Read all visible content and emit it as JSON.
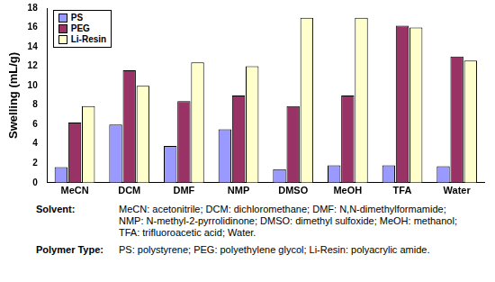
{
  "chart_data": {
    "type": "bar",
    "y_label": "Swelling (mL/g)",
    "categories": [
      "MeCN",
      "DCM",
      "DMF",
      "NMP",
      "DMSO",
      "MeOH",
      "TFA",
      "Water"
    ],
    "series": [
      {
        "name": "PS",
        "color": "#9999ff",
        "values": [
          1.6,
          6.0,
          3.8,
          5.5,
          1.4,
          1.8,
          1.8,
          1.7
        ]
      },
      {
        "name": "PEG",
        "color": "#993366",
        "values": [
          6.2,
          11.6,
          8.4,
          9.0,
          7.9,
          9.0,
          16.2,
          13.0
        ]
      },
      {
        "name": "Li-Resin",
        "color": "#ffffcc",
        "values": [
          7.9,
          10.0,
          12.4,
          12.0,
          17.0,
          17.0,
          16.0,
          12.6
        ]
      }
    ],
    "ylim": [
      0,
      18
    ],
    "yticks": [
      0,
      2,
      4,
      6,
      8,
      10,
      12,
      14,
      16,
      18
    ],
    "grid": false,
    "legend": "top-left",
    "data_labels": false,
    "annotations": [
      {
        "label": "Solvent:",
        "lines": [
          "MeCN: acetonitrile; DCM: dichloromethane; DMF: N,N-dimethylformamide;",
          "NMP: N-methyl-2-pyrrolidinone; DMSO: dimethyl sulfoxide; MeOH: methanol;",
          "TFA: trifluoroacetic acid; Water."
        ]
      },
      {
        "label": "Polymer Type:",
        "lines": [
          "PS: polystyrene; PEG: polyethylene glycol; Li-Resin: polyacrylic amide."
        ]
      }
    ]
  }
}
